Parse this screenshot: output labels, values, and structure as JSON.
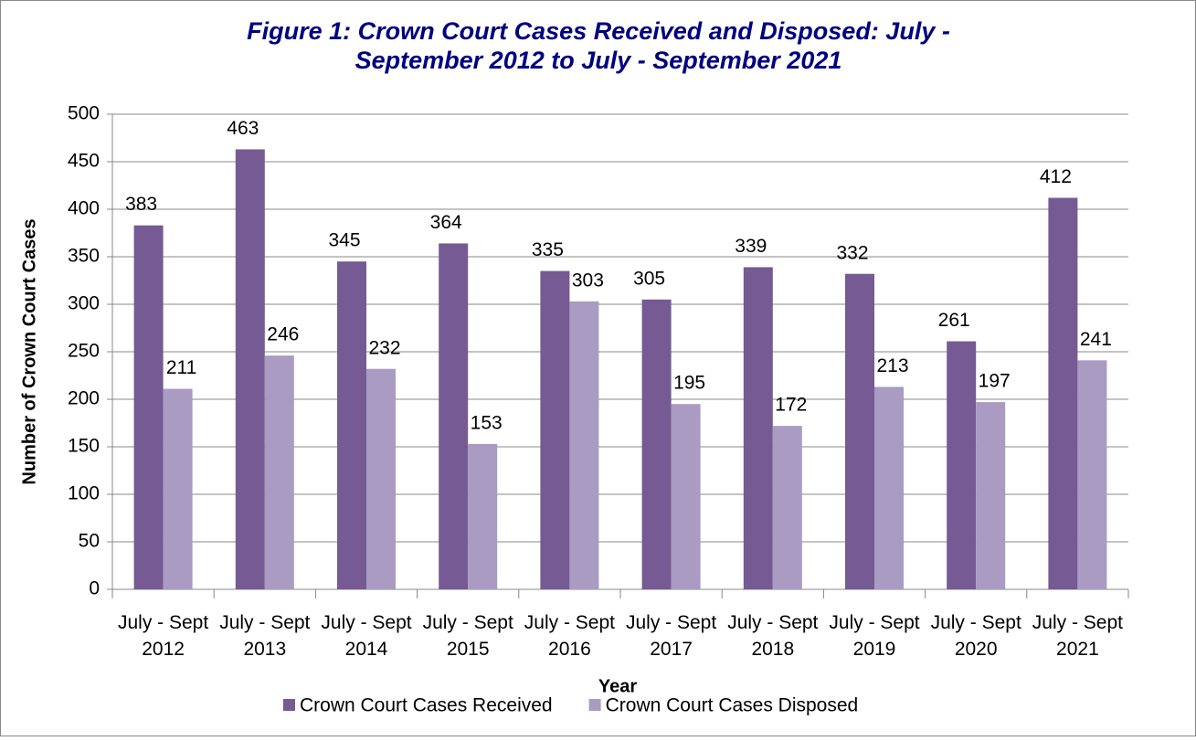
{
  "chart_data": {
    "type": "bar",
    "title": "Figure 1: Crown Court Cases Received and Disposed: July - September 2012 to July - September 2021",
    "categories": [
      "July - Sept 2012",
      "July - Sept 2013",
      "July - Sept 2014",
      "July - Sept 2015",
      "July - Sept 2016",
      "July - Sept 2017",
      "July - Sept 2018",
      "July - Sept 2019",
      "July - Sept 2020",
      "July - Sept 2021"
    ],
    "series": [
      {
        "name": "Crown Court Cases Received",
        "color": "#755a93",
        "values": [
          383,
          463,
          345,
          364,
          335,
          305,
          339,
          332,
          261,
          412
        ]
      },
      {
        "name": "Crown Court Cases Disposed",
        "color": "#a99bc2",
        "values": [
          211,
          246,
          232,
          153,
          303,
          195,
          172,
          213,
          197,
          241
        ]
      }
    ],
    "xlabel": "Year",
    "ylabel": "Number of Crown Court Cases",
    "ylim": [
      0,
      500
    ],
    "yticks": [
      0,
      50,
      100,
      150,
      200,
      250,
      300,
      350,
      400,
      450,
      500
    ],
    "grid": true,
    "legend": "bottom"
  }
}
